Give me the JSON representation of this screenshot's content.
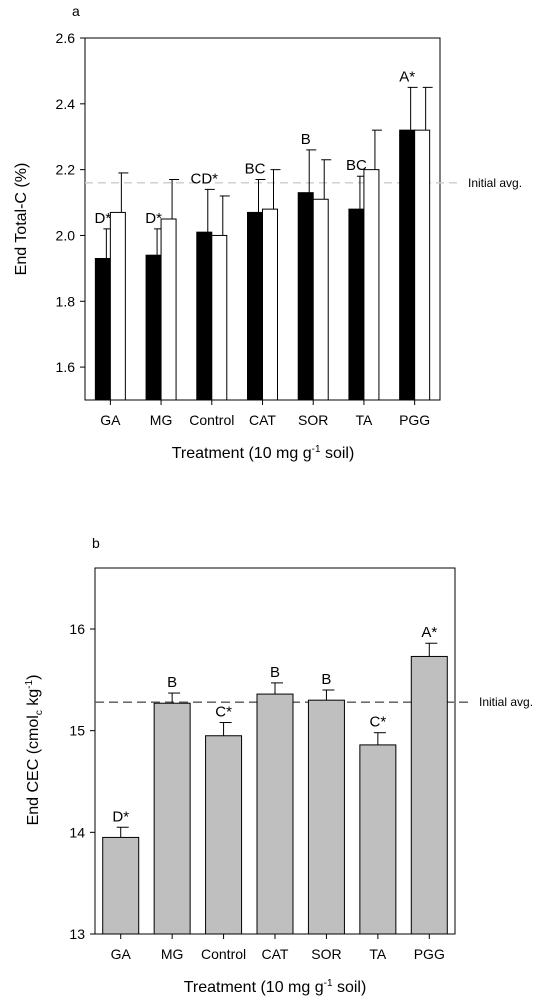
{
  "chart_data": [
    {
      "panel_label": "a",
      "type": "bar",
      "categories": [
        "GA",
        "MG",
        "Control",
        "CAT",
        "SOR",
        "TA",
        "PGG"
      ],
      "series": [
        {
          "values": [
            1.93,
            1.94,
            2.01,
            2.07,
            2.13,
            2.08,
            2.32
          ],
          "errors": [
            0.09,
            0.08,
            0.13,
            0.1,
            0.13,
            0.1,
            0.13
          ],
          "color": "#000000"
        },
        {
          "values": [
            2.07,
            2.05,
            2.0,
            2.08,
            2.11,
            2.2,
            2.32
          ],
          "errors": [
            0.12,
            0.12,
            0.12,
            0.12,
            0.12,
            0.12,
            0.13
          ],
          "color": "#ffffff"
        }
      ],
      "significance_labels": [
        "D*",
        "D*",
        "CD*",
        "BC",
        "B",
        "BC",
        "A*"
      ],
      "reference_line": {
        "value": 2.16,
        "label": "Initial avg.",
        "color": "#cccccc"
      },
      "ylim": [
        1.5,
        2.6
      ],
      "yticks": [
        "1.6",
        "1.8",
        "2.0",
        "2.2",
        "2.4",
        "2.6"
      ],
      "xlabel": "Treatment (10 mg g<sup>-1</sup> soil)",
      "ylabel": "End Total-C (%)",
      "grid": false
    },
    {
      "panel_label": "b",
      "type": "bar",
      "categories": [
        "GA",
        "MG",
        "Control",
        "CAT",
        "SOR",
        "TA",
        "PGG"
      ],
      "series": [
        {
          "values": [
            13.95,
            15.27,
            14.95,
            15.36,
            15.3,
            14.86,
            15.73
          ],
          "errors": [
            0.1,
            0.1,
            0.13,
            0.11,
            0.1,
            0.12,
            0.13
          ],
          "color": "#bfbfbf"
        }
      ],
      "significance_labels": [
        "D*",
        "B",
        "C*",
        "B",
        "B",
        "C*",
        "A*"
      ],
      "reference_line": {
        "value": 15.28,
        "label": "Initial avg.",
        "color": "#555555"
      },
      "ylim": [
        13,
        16.6
      ],
      "yticks": [
        "13",
        "14",
        "15",
        "16"
      ],
      "xlabel": "Treatment (10 mg g<sup>-1</sup> soil)",
      "ylabel": "End CEC (cmol<sub>c</sub> kg<sup>-1</sup>)",
      "grid": false
    }
  ]
}
